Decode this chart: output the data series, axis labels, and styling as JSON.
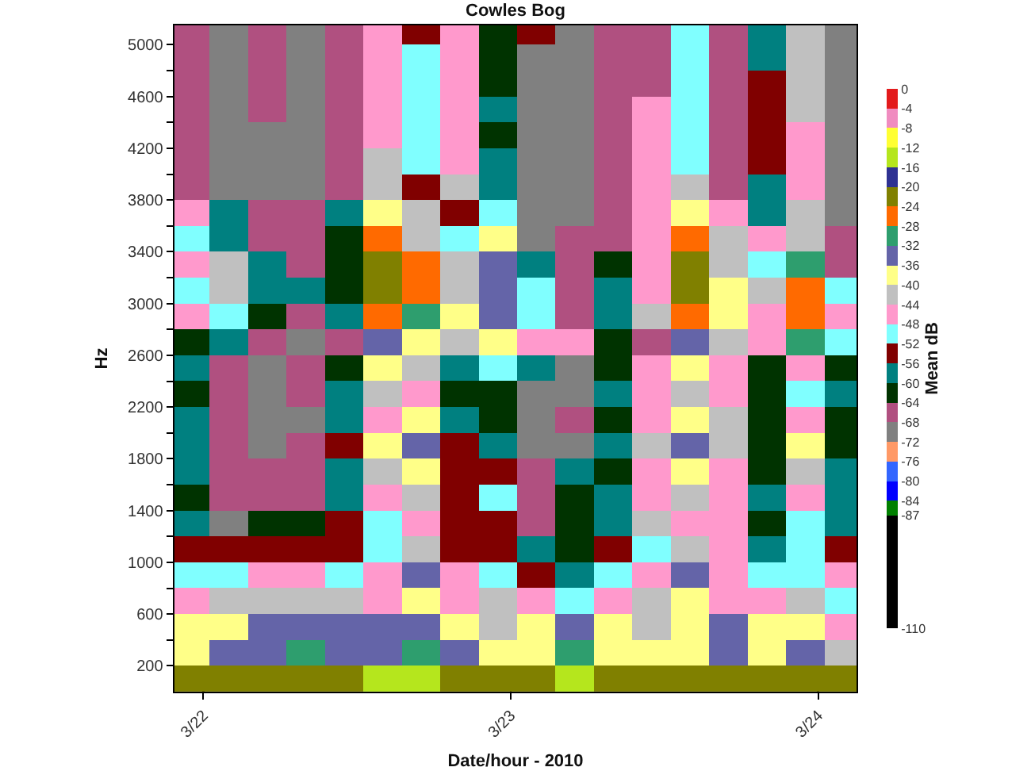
{
  "chart_data": {
    "type": "heatmap",
    "title": "Cowles Bog",
    "xlabel": "Date/hour - 2010",
    "ylabel": "Hz",
    "clabel": "Mean dB",
    "x": [
      "2010-03-21T23:00",
      "2010-03-22T02:00",
      "2010-03-22T05:00",
      "2010-03-22T08:00",
      "2010-03-22T11:00",
      "2010-03-22T14:00",
      "2010-03-22T17:00",
      "2010-03-22T20:00",
      "2010-03-22T23:00",
      "2010-03-23T02:00",
      "2010-03-23T05:00",
      "2010-03-23T08:00",
      "2010-03-23T11:00",
      "2010-03-23T14:00",
      "2010-03-23T17:00",
      "2010-03-23T20:00",
      "2010-03-23T23:00",
      "2010-03-24T02:00"
    ],
    "y": [
      5100,
      4900,
      4700,
      4500,
      4300,
      4100,
      3900,
      3700,
      3500,
      3300,
      3100,
      2900,
      2700,
      2500,
      2300,
      2100,
      1900,
      1700,
      1500,
      1300,
      1100,
      900,
      700,
      500,
      300,
      100
    ],
    "cells": [
      [
        -66,
        -70,
        -66,
        -70,
        -66,
        -46,
        -54,
        -46,
        -62,
        -54,
        -70,
        -66,
        -66,
        -50,
        -66,
        -58,
        -42,
        -70
      ],
      [
        -66,
        -70,
        -66,
        -70,
        -66,
        -46,
        -50,
        -46,
        -62,
        -70,
        -70,
        -66,
        -66,
        -50,
        -66,
        -58,
        -42,
        -70
      ],
      [
        -66,
        -70,
        -66,
        -70,
        -66,
        -46,
        -50,
        -46,
        -62,
        -70,
        -70,
        -66,
        -66,
        -50,
        -66,
        -54,
        -42,
        -70
      ],
      [
        -66,
        -70,
        -66,
        -70,
        -66,
        -46,
        -50,
        -46,
        -58,
        -70,
        -70,
        -66,
        -46,
        -50,
        -66,
        -54,
        -42,
        -70
      ],
      [
        -66,
        -70,
        -70,
        -70,
        -66,
        -46,
        -50,
        -46,
        -62,
        -70,
        -70,
        -66,
        -46,
        -50,
        -66,
        -54,
        -46,
        -70
      ],
      [
        -66,
        -70,
        -70,
        -70,
        -66,
        -42,
        -50,
        -46,
        -58,
        -70,
        -70,
        -66,
        -46,
        -50,
        -66,
        -54,
        -46,
        -70
      ],
      [
        -66,
        -70,
        -70,
        -70,
        -66,
        -42,
        -54,
        -42,
        -58,
        -70,
        -70,
        -66,
        -46,
        -42,
        -66,
        -58,
        -46,
        -70
      ],
      [
        -46,
        -58,
        -66,
        -66,
        -58,
        -38,
        -42,
        -54,
        -50,
        -70,
        -70,
        -66,
        -46,
        -38,
        -46,
        -58,
        -42,
        -70
      ],
      [
        -50,
        -58,
        -66,
        -66,
        -62,
        -26,
        -42,
        -50,
        -38,
        -70,
        -66,
        -66,
        -46,
        -26,
        -42,
        -46,
        -42,
        -66
      ],
      [
        -46,
        -42,
        -58,
        -66,
        -62,
        -22,
        -26,
        -42,
        -34,
        -58,
        -66,
        -62,
        -46,
        -22,
        -42,
        -50,
        -30,
        -66
      ],
      [
        -50,
        -42,
        -58,
        -58,
        -62,
        -22,
        -26,
        -42,
        -34,
        -50,
        -66,
        -58,
        -46,
        -22,
        -38,
        -42,
        -26,
        -50
      ],
      [
        -46,
        -50,
        -62,
        -66,
        -58,
        -26,
        -30,
        -38,
        -34,
        -50,
        -66,
        -58,
        -42,
        -26,
        -38,
        -46,
        -26,
        -46
      ],
      [
        -62,
        -58,
        -66,
        -70,
        -66,
        -34,
        -38,
        -42,
        -38,
        -46,
        -46,
        -62,
        -66,
        -34,
        -42,
        -46,
        -30,
        -50
      ],
      [
        -58,
        -66,
        -70,
        -66,
        -62,
        -38,
        -42,
        -58,
        -50,
        -58,
        -70,
        -62,
        -46,
        -38,
        -46,
        -62,
        -46,
        -62
      ],
      [
        -62,
        -66,
        -70,
        -66,
        -58,
        -42,
        -46,
        -62,
        -62,
        -70,
        -70,
        -58,
        -46,
        -42,
        -46,
        -62,
        -50,
        -58
      ],
      [
        -58,
        -66,
        -70,
        -70,
        -58,
        -46,
        -38,
        -58,
        -62,
        -70,
        -66,
        -62,
        -46,
        -38,
        -42,
        -62,
        -46,
        -62
      ],
      [
        -58,
        -66,
        -70,
        -66,
        -54,
        -38,
        -34,
        -54,
        -58,
        -70,
        -70,
        -58,
        -42,
        -34,
        -42,
        -62,
        -38,
        -62
      ],
      [
        -58,
        -66,
        -66,
        -66,
        -58,
        -42,
        -38,
        -54,
        -54,
        -66,
        -58,
        -62,
        -46,
        -38,
        -46,
        -62,
        -42,
        -58
      ],
      [
        -62,
        -66,
        -66,
        -66,
        -58,
        -46,
        -42,
        -54,
        -50,
        -66,
        -62,
        -58,
        -46,
        -42,
        -46,
        -58,
        -46,
        -58
      ],
      [
        -58,
        -70,
        -62,
        -62,
        -54,
        -50,
        -46,
        -54,
        -54,
        -66,
        -62,
        -58,
        -42,
        -46,
        -46,
        -62,
        -50,
        -58
      ],
      [
        -54,
        -54,
        -54,
        -54,
        -54,
        -50,
        -42,
        -54,
        -54,
        -58,
        -62,
        -54,
        -50,
        -42,
        -46,
        -58,
        -50,
        -54
      ],
      [
        -50,
        -50,
        -46,
        -46,
        -50,
        -46,
        -34,
        -46,
        -50,
        -54,
        -58,
        -50,
        -46,
        -34,
        -46,
        -50,
        -50,
        -46
      ],
      [
        -46,
        -42,
        -42,
        -42,
        -42,
        -46,
        -38,
        -46,
        -42,
        -46,
        -50,
        -46,
        -42,
        -38,
        -46,
        -46,
        -42,
        -50
      ],
      [
        -38,
        -38,
        -34,
        -34,
        -34,
        -34,
        -34,
        -38,
        -42,
        -38,
        -34,
        -38,
        -42,
        -38,
        -34,
        -38,
        -38,
        -46
      ],
      [
        -38,
        -34,
        -34,
        -30,
        -34,
        -34,
        -30,
        -34,
        -38,
        -38,
        -30,
        -38,
        -38,
        -38,
        -34,
        -38,
        -34,
        -42
      ],
      [
        -22,
        -22,
        -22,
        -22,
        -22,
        -14,
        -14,
        -22,
        -22,
        -22,
        -14,
        -22,
        -22,
        -22,
        -22,
        -22,
        -22,
        -22
      ]
    ],
    "clim": [
      -110,
      0
    ],
    "cticks": [
      0,
      -4,
      -8,
      -12,
      -16,
      -20,
      -24,
      -28,
      -32,
      -36,
      -40,
      -44,
      -48,
      -52,
      -56,
      -60,
      -64,
      -68,
      -72,
      -76,
      -80,
      -84,
      -87,
      -110
    ],
    "colors": [
      "#e31a1c",
      "#f08cc0",
      "#ffff33",
      "#b5e61d",
      "#2e3192",
      "#808000",
      "#ff6a00",
      "#2e9e6e",
      "#6464a8",
      "#ffff88",
      "#c0c0c0",
      "#ff99cc",
      "#80ffff",
      "#800000",
      "#008080",
      "#003300",
      "#b05080",
      "#808080",
      "#ff9966",
      "#3366ff",
      "#0000ff",
      "#008000",
      "#000000"
    ],
    "xlim": [
      "2010-03-21T21:45",
      "2010-03-24T03:00"
    ],
    "xticks": [
      {
        "value": "2010-03-22",
        "label": "3/22"
      },
      {
        "value": "2010-03-23",
        "label": "3/23"
      },
      {
        "value": "2010-03-24",
        "label": "3/24"
      }
    ],
    "ylim": [
      0,
      5150
    ],
    "yticks": [
      200,
      {
        "value": 400,
        "label": null
      },
      600,
      {
        "value": 800,
        "label": null
      },
      1000,
      {
        "value": 1200,
        "label": null
      },
      1400,
      {
        "value": 1600,
        "label": null
      },
      1800,
      {
        "value": 2000,
        "label": null
      },
      2200,
      {
        "value": 2400,
        "label": null
      },
      2600,
      {
        "value": 2800,
        "label": null
      },
      3000,
      {
        "value": 3200,
        "label": null
      },
      3400,
      {
        "value": 3600,
        "label": null
      },
      3800,
      {
        "value": 4000,
        "label": null
      },
      4200,
      {
        "value": 4400,
        "label": null
      },
      4600,
      {
        "value": 4800,
        "label": null
      },
      5000
    ],
    "grid": true
  }
}
